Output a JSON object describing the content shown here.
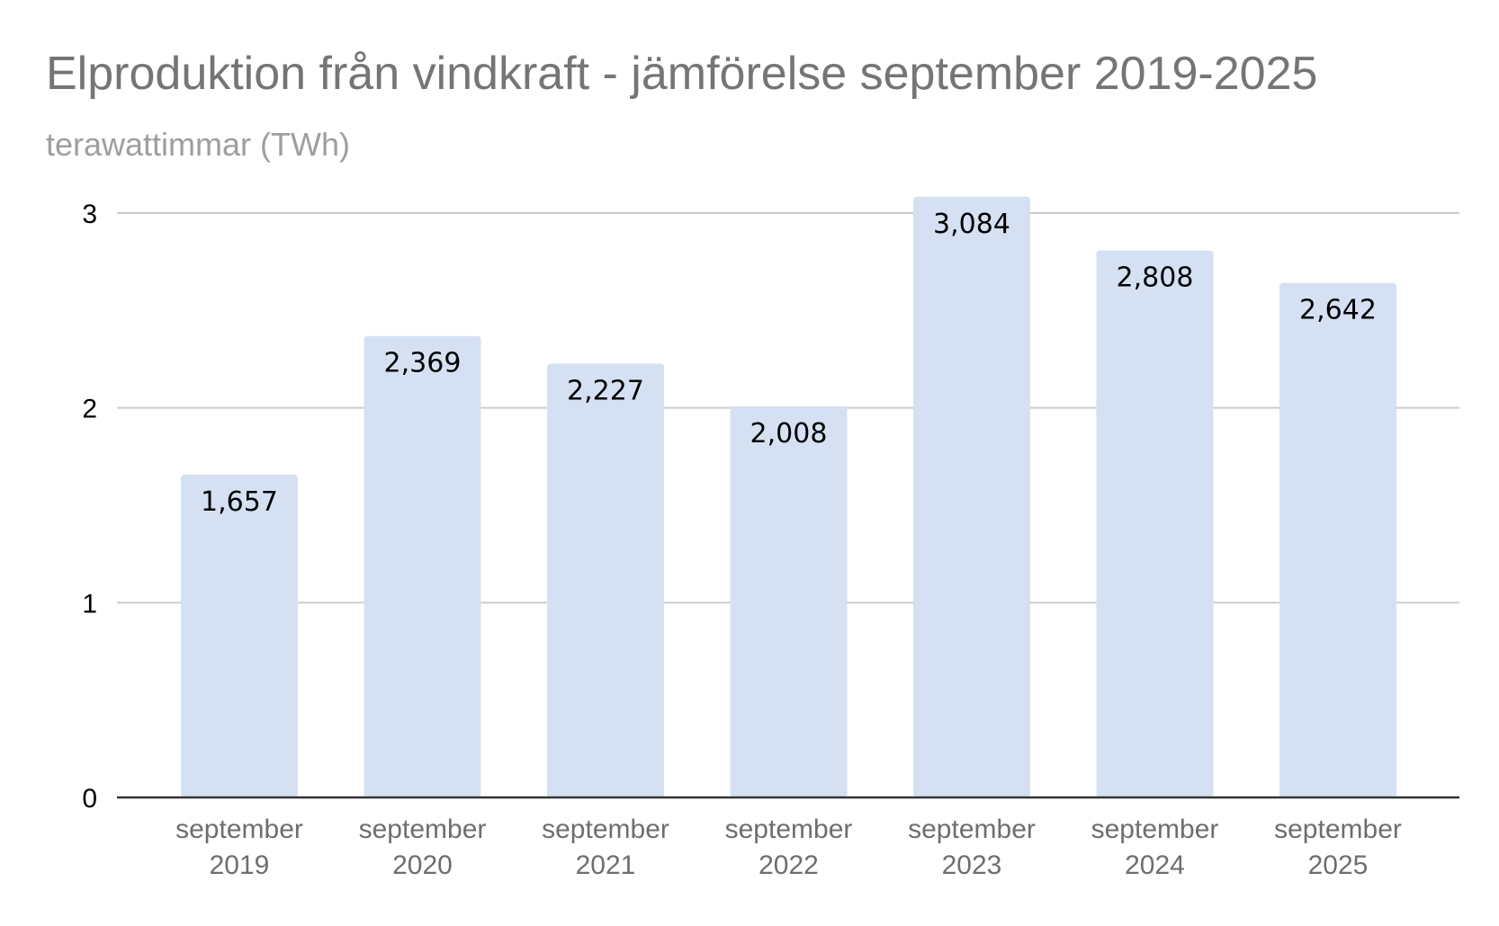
{
  "chart_data": {
    "type": "bar",
    "title": "Elproduktion från vindkraft - jämförelse september 2019-2025",
    "subtitle": "terawattimmar (TWh)",
    "categories": [
      [
        "september",
        "2019"
      ],
      [
        "september",
        "2020"
      ],
      [
        "september",
        "2021"
      ],
      [
        "september",
        "2022"
      ],
      [
        "september",
        "2023"
      ],
      [
        "september",
        "2024"
      ],
      [
        "september",
        "2025"
      ]
    ],
    "values": [
      1.657,
      2.369,
      2.227,
      2.008,
      3.084,
      2.808,
      2.642
    ],
    "data_labels": [
      "1,657",
      "2,369",
      "2,227",
      "2,008",
      "3,084",
      "2,808",
      "2,642"
    ],
    "ylim": [
      0,
      3
    ],
    "yticks": [
      0,
      1,
      2,
      3
    ],
    "ytick_labels": [
      "0",
      "1",
      "2",
      "3"
    ],
    "grid": true,
    "legend": "none",
    "bar_color": "#d5e1f3",
    "grid_color": "#cccccc",
    "axis_color": "#333333"
  }
}
